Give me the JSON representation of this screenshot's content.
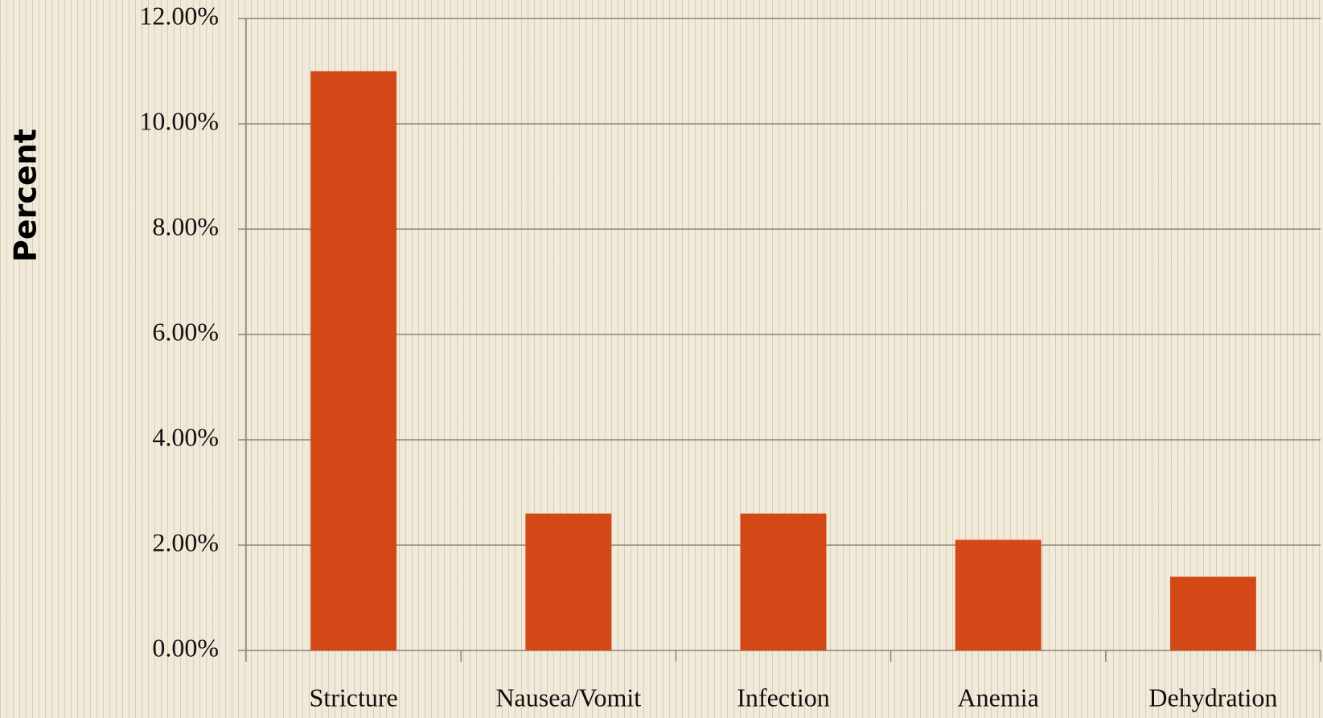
{
  "chart_data": {
    "type": "bar",
    "y_axis_label": "Percent",
    "categories": [
      "Stricture",
      "Nausea/Vomit",
      "Infection",
      "Anemia",
      "Dehydration"
    ],
    "values": [
      11.0,
      2.6,
      2.6,
      2.1,
      1.4
    ],
    "color": "#d24816",
    "ylim": [
      0,
      12
    ],
    "yticks": [
      {
        "value": 0,
        "label": "0.00%"
      },
      {
        "value": 2,
        "label": "2.00%"
      },
      {
        "value": 4,
        "label": "4.00%"
      },
      {
        "value": 6,
        "label": "6.00%"
      },
      {
        "value": 8,
        "label": "8.00%"
      },
      {
        "value": 10,
        "label": "10.00%"
      },
      {
        "value": 12,
        "label": "12.00%"
      }
    ],
    "grid": true
  }
}
